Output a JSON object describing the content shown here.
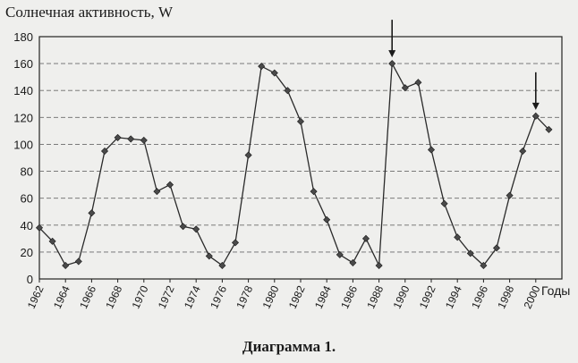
{
  "chart_data": {
    "type": "line",
    "title": "",
    "ylabel": "Солнечная активность, W",
    "xlabel": "Годы",
    "ylim": [
      0,
      180
    ],
    "yticks": [
      0,
      20,
      40,
      60,
      80,
      100,
      120,
      140,
      160,
      180
    ],
    "xlim": [
      1962,
      2002
    ],
    "xticks": [
      1962,
      1964,
      1966,
      1968,
      1970,
      1972,
      1974,
      1976,
      1978,
      1980,
      1982,
      1984,
      1986,
      1988,
      1990,
      1992,
      1994,
      1996,
      1998,
      2000
    ],
    "grid": "horizontal",
    "series": [
      {
        "name": "",
        "x": [
          1962,
          1963,
          1964,
          1965,
          1966,
          1967,
          1968,
          1969,
          1970,
          1971,
          1972,
          1973,
          1974,
          1975,
          1976,
          1977,
          1978,
          1979,
          1980,
          1981,
          1982,
          1983,
          1984,
          1985,
          1986,
          1987,
          1988,
          1989,
          1990,
          1991,
          1992,
          1993,
          1994,
          1995,
          1996,
          1997,
          1998,
          1999,
          2000,
          2001
        ],
        "values": [
          38,
          28,
          10,
          13,
          49,
          95,
          105,
          104,
          103,
          65,
          70,
          39,
          37,
          17,
          10,
          27,
          92,
          158,
          153,
          140,
          117,
          65,
          44,
          18,
          12,
          30,
          10,
          160,
          142,
          146,
          96,
          56,
          31,
          19,
          10,
          23,
          62,
          95,
          121,
          111
        ]
      }
    ],
    "markers": [
      {
        "x": 1989
      },
      {
        "x": 2000
      }
    ]
  },
  "caption": "Диаграмма 1.",
  "colors": {
    "background": "#efefed",
    "line": "#2a2a2a",
    "marker": "#4a4a4a",
    "grid": "#6a6a6a"
  }
}
